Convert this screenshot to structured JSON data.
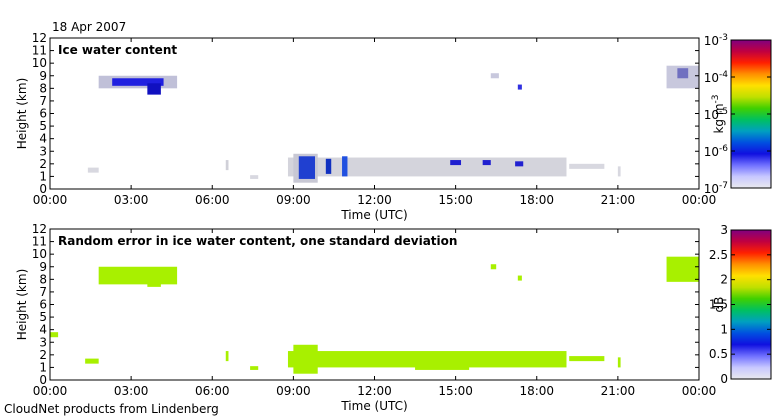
{
  "date": "18 Apr 2007",
  "footer": "CloudNet products from Lindenberg",
  "chart_data": [
    {
      "type": "heatmap",
      "title": "Ice water content",
      "xlabel": "Time (UTC)",
      "ylabel": "Height (km)",
      "xlim": [
        0,
        24
      ],
      "ylim": [
        0,
        12
      ],
      "xticks": [
        "00:00",
        "03:00",
        "06:00",
        "09:00",
        "12:00",
        "15:00",
        "18:00",
        "21:00",
        "00:00"
      ],
      "yticks": [
        0,
        1,
        2,
        3,
        4,
        5,
        6,
        7,
        8,
        9,
        10,
        11,
        12
      ],
      "colorbar": {
        "label": "kg m",
        "label_exponent": "-3",
        "scale": "log",
        "range": [
          1e-07,
          0.001
        ],
        "ticks": [
          {
            "value": -3,
            "base": "10",
            "exp": "-3"
          },
          {
            "value": -4,
            "base": "10",
            "exp": "-4"
          },
          {
            "value": -5,
            "base": "10",
            "exp": "-5"
          },
          {
            "value": -6,
            "base": "10",
            "exp": "-6"
          },
          {
            "value": -7,
            "base": "10",
            "exp": "-7"
          }
        ],
        "colormap": [
          "#e9e9ee",
          "#c8c8ff",
          "#7070ff",
          "#1010e0",
          "#0050e0",
          "#00a0c0",
          "#00c060",
          "#40d000",
          "#c0e000",
          "#ffe000",
          "#ff9000",
          "#ff2000",
          "#c00040",
          "#800080"
        ]
      },
      "regions": [
        {
          "t0": 1.8,
          "t1": 4.7,
          "h0": 8.0,
          "h1": 9.0,
          "color": "#c0c0d8"
        },
        {
          "t0": 2.3,
          "t1": 4.2,
          "h0": 8.2,
          "h1": 8.8,
          "color": "#2020e0"
        },
        {
          "t0": 3.6,
          "t1": 4.1,
          "h0": 7.5,
          "h1": 8.4,
          "color": "#1010c0"
        },
        {
          "t0": 22.8,
          "t1": 24.0,
          "h0": 8.0,
          "h1": 9.8,
          "color": "#c8c8dd"
        },
        {
          "t0": 23.2,
          "t1": 23.6,
          "h0": 8.8,
          "h1": 9.6,
          "color": "#7070c0"
        },
        {
          "t0": 16.3,
          "t1": 16.6,
          "h0": 8.8,
          "h1": 9.2,
          "color": "#c8c8dd"
        },
        {
          "t0": 17.3,
          "t1": 17.45,
          "h0": 7.9,
          "h1": 8.3,
          "color": "#3030e0"
        },
        {
          "t0": 1.4,
          "t1": 1.8,
          "h0": 1.3,
          "h1": 1.7,
          "color": "#d8d8e0"
        },
        {
          "t0": 6.5,
          "t1": 6.6,
          "h0": 1.5,
          "h1": 2.3,
          "color": "#d0d0d8"
        },
        {
          "t0": 7.4,
          "t1": 7.7,
          "h0": 0.8,
          "h1": 1.1,
          "color": "#d8d8e0"
        },
        {
          "t0": 8.8,
          "t1": 19.1,
          "h0": 1.0,
          "h1": 2.5,
          "color": "#d4d4dc"
        },
        {
          "t0": 9.0,
          "t1": 9.9,
          "h0": 0.5,
          "h1": 2.8,
          "color": "#c8c8d4"
        },
        {
          "t0": 9.2,
          "t1": 9.8,
          "h0": 0.8,
          "h1": 2.6,
          "color": "#2040d0"
        },
        {
          "t0": 10.2,
          "t1": 10.4,
          "h0": 1.2,
          "h1": 2.4,
          "color": "#1030c0"
        },
        {
          "t0": 10.8,
          "t1": 11.0,
          "h0": 1.0,
          "h1": 2.6,
          "color": "#2050e0"
        },
        {
          "t0": 14.8,
          "t1": 15.2,
          "h0": 1.9,
          "h1": 2.3,
          "color": "#2020d0"
        },
        {
          "t0": 16.0,
          "t1": 16.3,
          "h0": 1.9,
          "h1": 2.3,
          "color": "#2020d0"
        },
        {
          "t0": 17.2,
          "t1": 17.5,
          "h0": 1.8,
          "h1": 2.2,
          "color": "#2020d0"
        },
        {
          "t0": 19.2,
          "t1": 20.5,
          "h0": 1.6,
          "h1": 2.0,
          "color": "#d8d8e0"
        },
        {
          "t0": 21.0,
          "t1": 21.1,
          "h0": 1.0,
          "h1": 1.8,
          "color": "#d8d8e0"
        }
      ]
    },
    {
      "type": "heatmap",
      "title": "Random error in ice water content, one standard deviation",
      "xlabel": "Time (UTC)",
      "ylabel": "Height (km)",
      "xlim": [
        0,
        24
      ],
      "ylim": [
        0,
        12
      ],
      "xticks": [
        "00:00",
        "03:00",
        "06:00",
        "09:00",
        "12:00",
        "15:00",
        "18:00",
        "21:00",
        "00:00"
      ],
      "yticks": [
        0,
        1,
        2,
        3,
        4,
        5,
        6,
        7,
        8,
        9,
        10,
        11,
        12
      ],
      "colorbar": {
        "label": "dB",
        "scale": "linear",
        "range": [
          0,
          3
        ],
        "ticks": [
          "0",
          "0.5",
          "1",
          "1.5",
          "2",
          "2.5",
          "3"
        ],
        "colormap": [
          "#e9e9ee",
          "#c8c8ff",
          "#7070ff",
          "#1010e0",
          "#0050e0",
          "#00a0c0",
          "#00c060",
          "#40d000",
          "#c0e000",
          "#ffe000",
          "#ff9000",
          "#ff2000",
          "#c00040",
          "#800080"
        ]
      },
      "regions": [
        {
          "t0": 1.8,
          "t1": 4.7,
          "h0": 7.6,
          "h1": 9.0,
          "color": "#a8f000"
        },
        {
          "t0": 3.6,
          "t1": 4.1,
          "h0": 7.4,
          "h1": 8.0,
          "color": "#a8f000"
        },
        {
          "t0": 22.8,
          "t1": 24.0,
          "h0": 7.8,
          "h1": 9.8,
          "color": "#a8f000"
        },
        {
          "t0": 16.3,
          "t1": 16.5,
          "h0": 8.8,
          "h1": 9.2,
          "color": "#a8f000"
        },
        {
          "t0": 17.3,
          "t1": 17.45,
          "h0": 7.9,
          "h1": 8.3,
          "color": "#a8f000"
        },
        {
          "t0": 0.0,
          "t1": 0.3,
          "h0": 3.4,
          "h1": 3.8,
          "color": "#a8f000"
        },
        {
          "t0": 1.3,
          "t1": 1.8,
          "h0": 1.3,
          "h1": 1.7,
          "color": "#a8f000"
        },
        {
          "t0": 6.5,
          "t1": 6.6,
          "h0": 1.5,
          "h1": 2.3,
          "color": "#a8f000"
        },
        {
          "t0": 7.4,
          "t1": 7.7,
          "h0": 0.8,
          "h1": 1.1,
          "color": "#a8f000"
        },
        {
          "t0": 8.8,
          "t1": 19.1,
          "h0": 1.0,
          "h1": 2.3,
          "color": "#a8f000"
        },
        {
          "t0": 9.0,
          "t1": 9.9,
          "h0": 0.5,
          "h1": 2.8,
          "color": "#a8f000"
        },
        {
          "t0": 13.5,
          "t1": 15.5,
          "h0": 0.8,
          "h1": 2.2,
          "color": "#a8f000"
        },
        {
          "t0": 19.2,
          "t1": 20.5,
          "h0": 1.5,
          "h1": 1.9,
          "color": "#a8f000"
        },
        {
          "t0": 21.0,
          "t1": 21.1,
          "h0": 1.0,
          "h1": 1.8,
          "color": "#a8f000"
        }
      ]
    }
  ]
}
